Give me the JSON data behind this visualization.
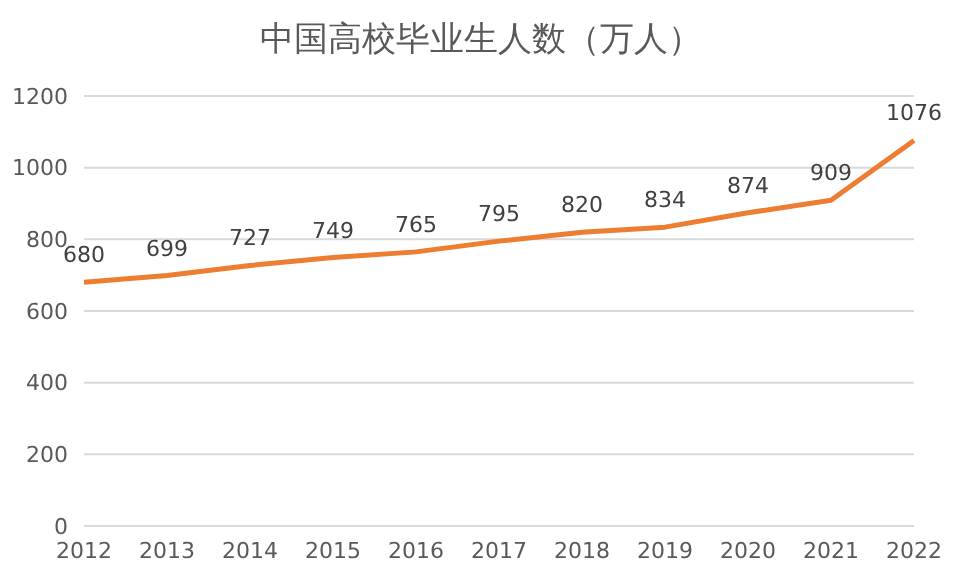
{
  "chart_data": {
    "type": "line",
    "title": "中国高校毕业生人数（万人）",
    "categories": [
      "2012",
      "2013",
      "2014",
      "2015",
      "2016",
      "2017",
      "2018",
      "2019",
      "2020",
      "2021",
      "2022"
    ],
    "series": [
      {
        "color": "#ed7d31",
        "values": [
          680,
          699,
          727,
          749,
          765,
          795,
          820,
          834,
          874,
          909,
          1076
        ]
      }
    ],
    "ylim": [
      0,
      1200
    ],
    "yticks": [
      0,
      200,
      400,
      600,
      800,
      1000,
      1200
    ],
    "grid": "y",
    "marker": "none",
    "line_style": "solid",
    "data_labels": true
  }
}
